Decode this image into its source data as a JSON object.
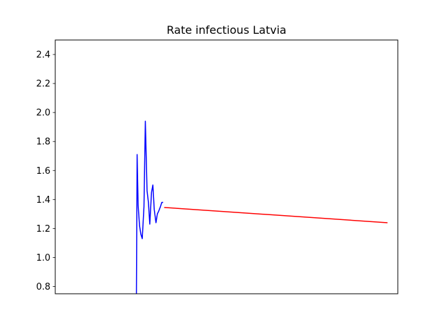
{
  "chart_data": {
    "type": "line",
    "title": "Rate infectious Latvia",
    "xlabel": "",
    "ylabel": "",
    "xlim": [
      0,
      100
    ],
    "ylim": [
      0.75,
      2.5
    ],
    "grid": false,
    "x_ticks_shown": false,
    "yticks": [
      "0.8",
      "1.0",
      "1.2",
      "1.4",
      "1.6",
      "1.8",
      "2.0",
      "2.2",
      "2.4"
    ],
    "series": [
      {
        "color": "#0000ff",
        "x": [
          23.7,
          23.9,
          24.2,
          24.6,
          25.0,
          25.4,
          25.9,
          26.3,
          26.8,
          27.2,
          27.6,
          28.1,
          28.5,
          28.9,
          29.4,
          29.8,
          30.2,
          30.7,
          31.1,
          31.5
        ],
        "y": [
          0.75,
          1.71,
          1.36,
          1.22,
          1.16,
          1.13,
          1.35,
          1.94,
          1.46,
          1.38,
          1.23,
          1.45,
          1.5,
          1.33,
          1.24,
          1.3,
          1.32,
          1.35,
          1.38,
          1.38
        ]
      },
      {
        "color": "#ff0000",
        "x": [
          31.8,
          97.0
        ],
        "y": [
          1.345,
          1.24
        ]
      }
    ]
  }
}
